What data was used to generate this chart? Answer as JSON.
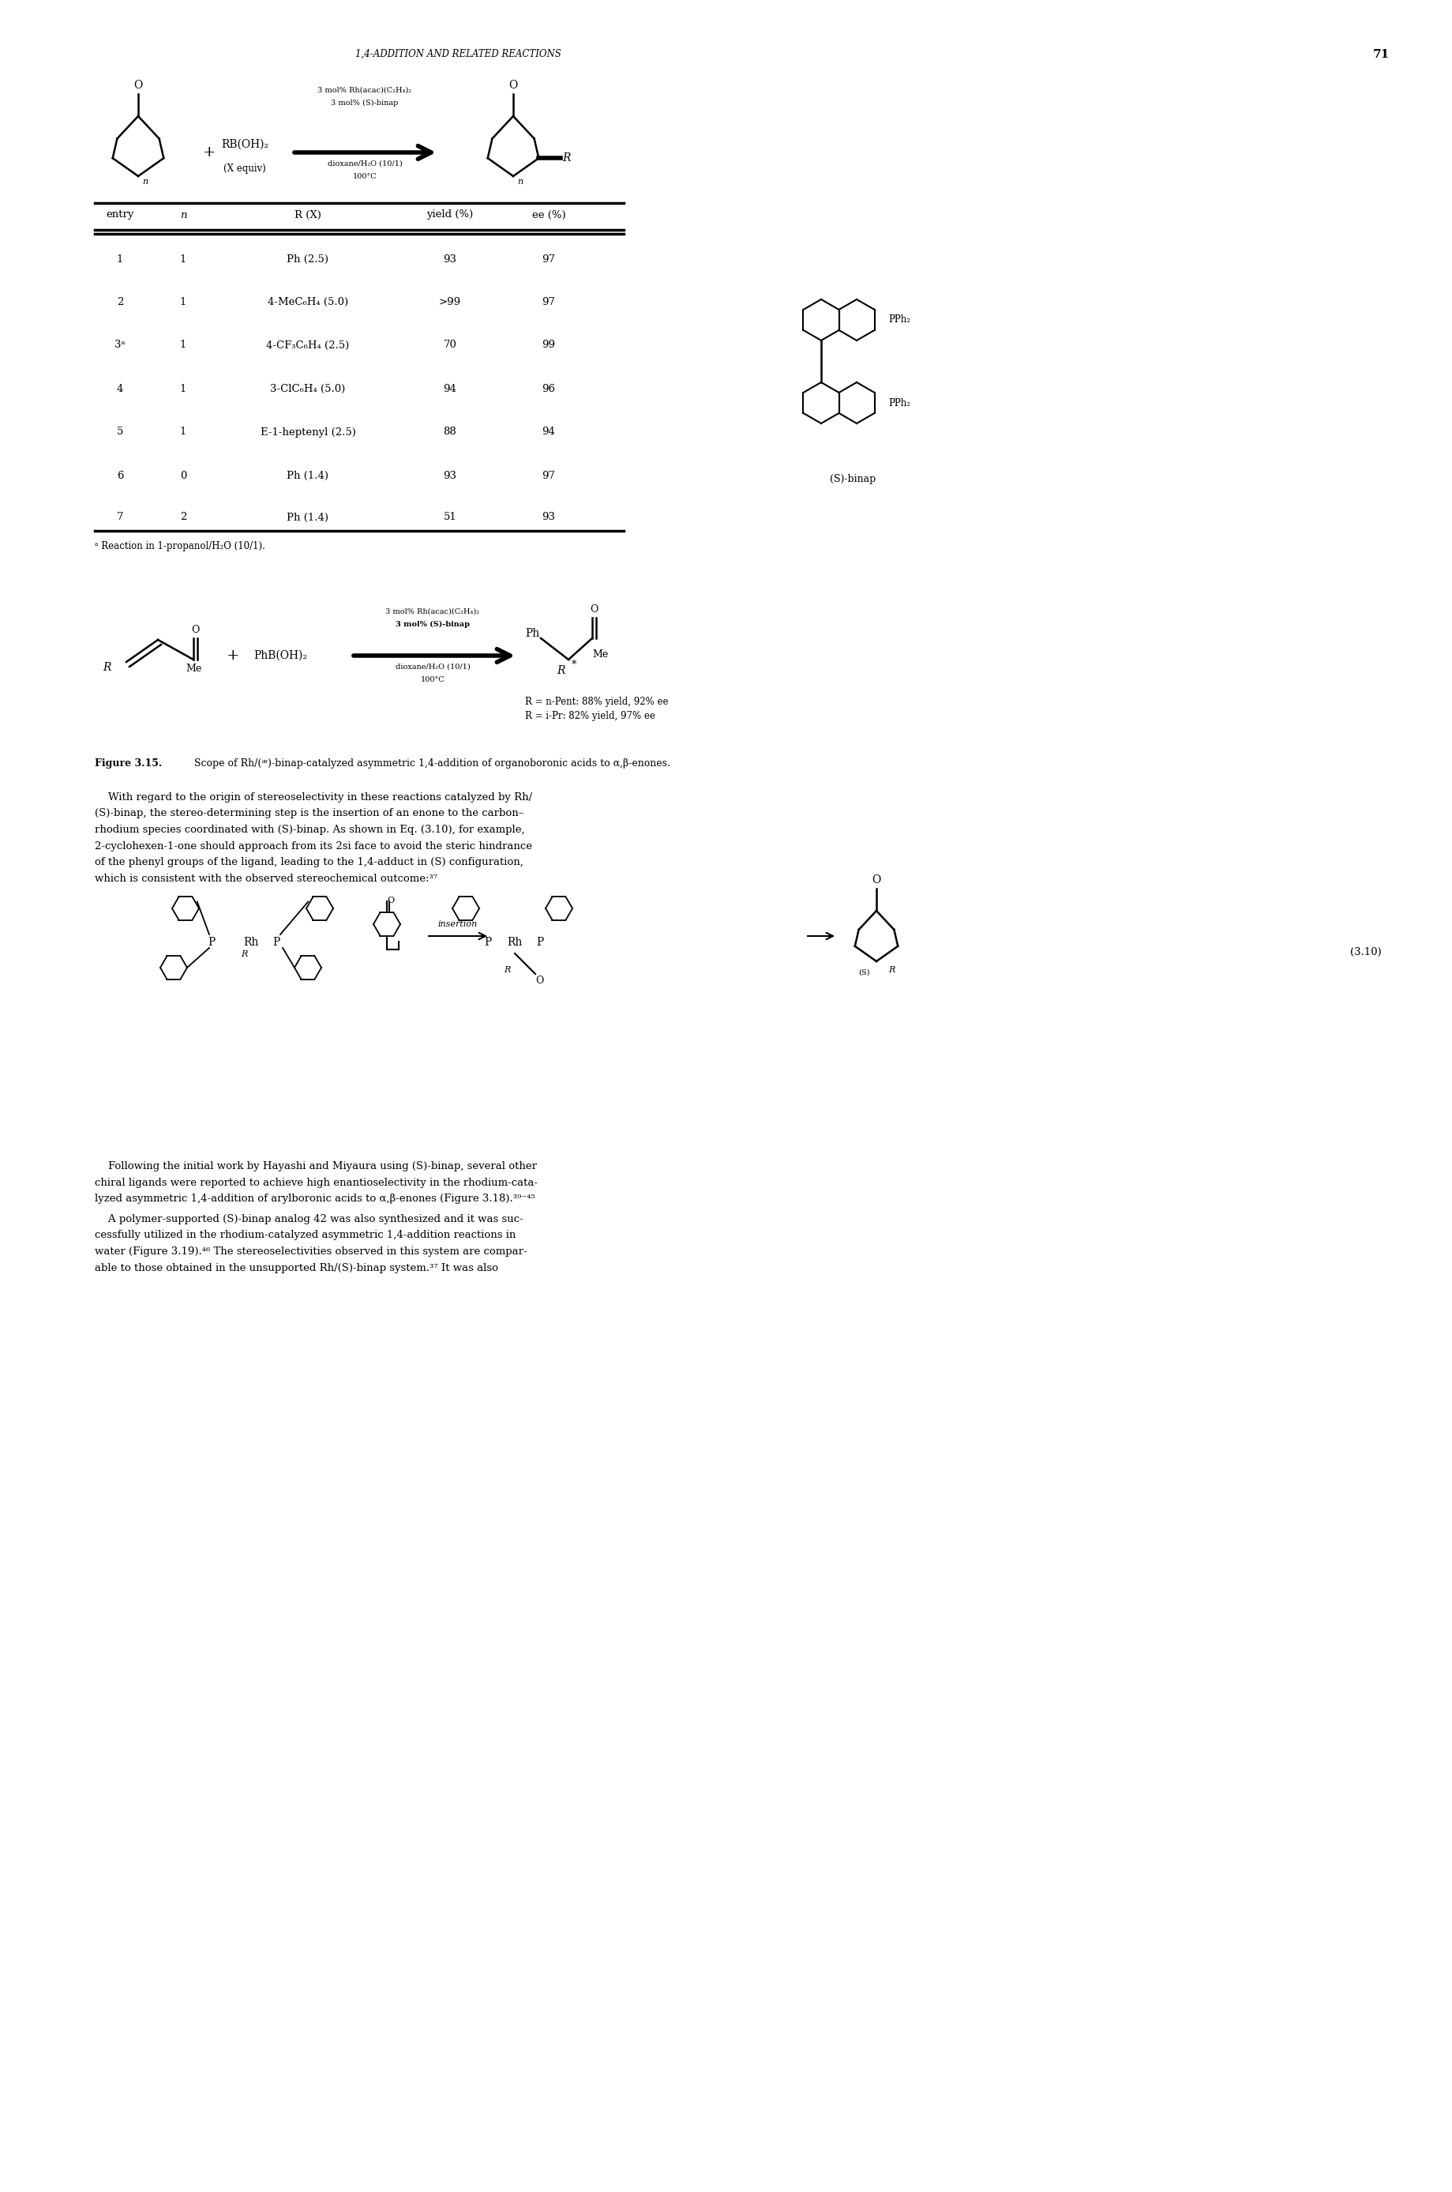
{
  "page_width": 18.39,
  "page_height": 27.75,
  "bg_color": "#ffffff",
  "header_text": "1,4-ADDITION AND RELATED REACTIONS",
  "header_page_num": "71",
  "table_headers": [
    "entry",
    "n",
    "R (X)",
    "yield (%)",
    "ee (%)"
  ],
  "table_rows": [
    [
      "1",
      "1",
      "Ph (2.5)",
      "93",
      "97"
    ],
    [
      "2",
      "1",
      "4-MeC₆H₄ (5.0)",
      ">99",
      "97"
    ],
    [
      "3ᵃ",
      "1",
      "4-CF₃C₆H₄ (2.5)",
      "70",
      "99"
    ],
    [
      "4",
      "1",
      "3-ClC₆H₄ (5.0)",
      "94",
      "96"
    ],
    [
      "5",
      "1",
      "E-1-heptenyl (2.5)",
      "88",
      "94"
    ],
    [
      "6",
      "0",
      "Ph (1.4)",
      "93",
      "97"
    ],
    [
      "7",
      "2",
      "Ph (1.4)",
      "51",
      "93"
    ]
  ],
  "footnote": "ᵃ Reaction in 1-propanol/H₂O (10/1).",
  "caption_bold": "Figure 3.15.",
  "caption_rest": "  Scope of Rh/(ᵆ)-binap-catalyzed asymmetric 1,4-addition of organoboronic acids to α,β-enones.",
  "reaction1_cond1": "3 mol% Rh(acac)(C₂H₄)₂",
  "reaction1_cond2": "3 mol% (S)-binap",
  "reaction1_cond3": "dioxane/H₂O (10/1)",
  "reaction1_cond4": "100°C",
  "reaction2_cond1": "3 mol% Rh(acac)(C₂H₄)₂",
  "reaction2_cond2": "3 mol% (S)-binap",
  "reaction2_cond3": "dioxane/H₂O (10/1)",
  "reaction2_cond4": "100°C",
  "reaction2_result1": "R = n-Pent: 88% yield, 92% ee",
  "reaction2_result2": "R = i-Pr: 82% yield, 97% ee",
  "eq310_label": "(3.10)",
  "S_binap_label": "(S)-binap",
  "para1_line1": "    With regard to the origin of stereoselectivity in these reactions catalyzed by Rh/",
  "para1_line2": "(S)-binap, the stereo-determining step is the insertion of an enone to the carbon–",
  "para1_line3": "rhodium species coordinated with (S)-binap. As shown in Eq. (3.10), for example,",
  "para1_line4": "2-cyclohexen-1-one should approach from its 2si face to avoid the steric hindrance",
  "para1_line5": "of the phenyl groups of the ligand, leading to the 1,4-adduct in (S) configuration,",
  "para1_line6": "which is consistent with the observed stereochemical outcome:³⁷",
  "para2_line1": "    Following the initial work by Hayashi and Miyaura using (S)-binap, several other",
  "para2_line2": "chiral ligands were reported to achieve high enantioselectivity in the rhodium-cata-",
  "para2_line3": "lyzed asymmetric 1,4-addition of arylboronic acids to α,β-enones (Figure 3.18).³⁹⁻⁴⁵",
  "para3_line1": "    A polymer-supported (S)-binap analog 42 was also synthesized and it was suc-",
  "para3_line2": "cessfully utilized in the rhodium-catalyzed asymmetric 1,4-addition reactions in",
  "para3_line3": "water (Figure 3.19).⁴⁶ The stereoselectivities observed in this system are compar-",
  "para3_line4": "able to those obtained in the unsupported Rh/(S)-binap system.³⁷ It was also"
}
